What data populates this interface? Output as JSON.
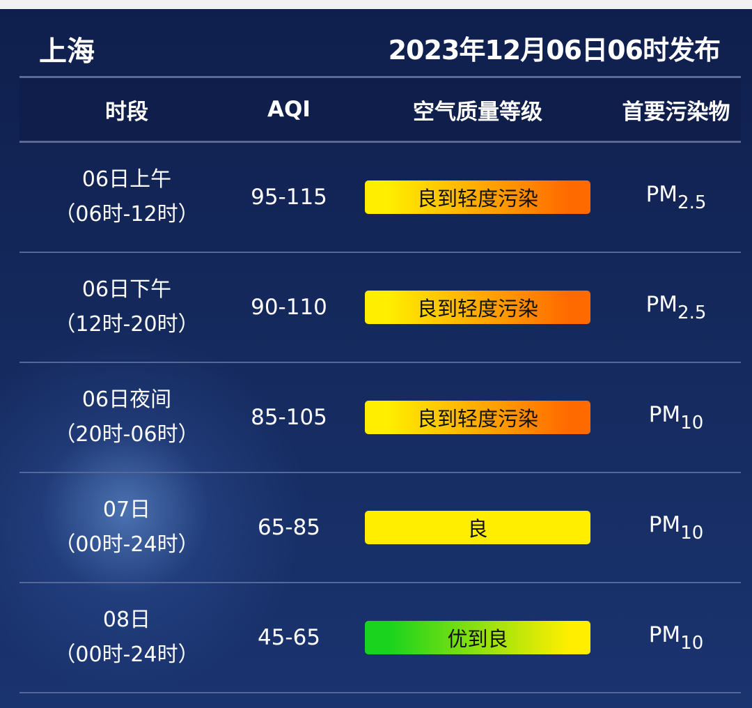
{
  "header": {
    "city": "上海",
    "issued": "2023年12月06日06时发布"
  },
  "columns": [
    "时段",
    "AQI",
    "空气质量等级",
    "首要污染物"
  ],
  "colors": {
    "good": "#ffee00",
    "light_pollution": "#ff6a00",
    "excellent": "#19d31e"
  },
  "rows": [
    {
      "period": "06日上午",
      "range": "（06时-12时）",
      "aqi": "95-115",
      "level": "良到轻度污染",
      "gradient": [
        "#ffee00",
        "#ff6a00"
      ],
      "pm": "PM",
      "pm_sub": "2.5"
    },
    {
      "period": "06日下午",
      "range": "（12时-20时）",
      "aqi": "90-110",
      "level": "良到轻度污染",
      "gradient": [
        "#ffee00",
        "#ff6a00"
      ],
      "pm": "PM",
      "pm_sub": "2.5"
    },
    {
      "period": "06日夜间",
      "range": "（20时-06时）",
      "aqi": "85-105",
      "level": "良到轻度污染",
      "gradient": [
        "#ffee00",
        "#ff6a00"
      ],
      "pm": "PM",
      "pm_sub": "10"
    },
    {
      "period": "07日",
      "range": "（00时-24时）",
      "aqi": "65-85",
      "level": "良",
      "gradient": [
        "#ffee00",
        "#ffee00"
      ],
      "pm": "PM",
      "pm_sub": "10"
    },
    {
      "period": "08日",
      "range": "（00时-24时）",
      "aqi": "45-65",
      "level": "优到良",
      "gradient": [
        "#19d31e",
        "#ffee00"
      ],
      "pm": "PM",
      "pm_sub": "10"
    }
  ]
}
